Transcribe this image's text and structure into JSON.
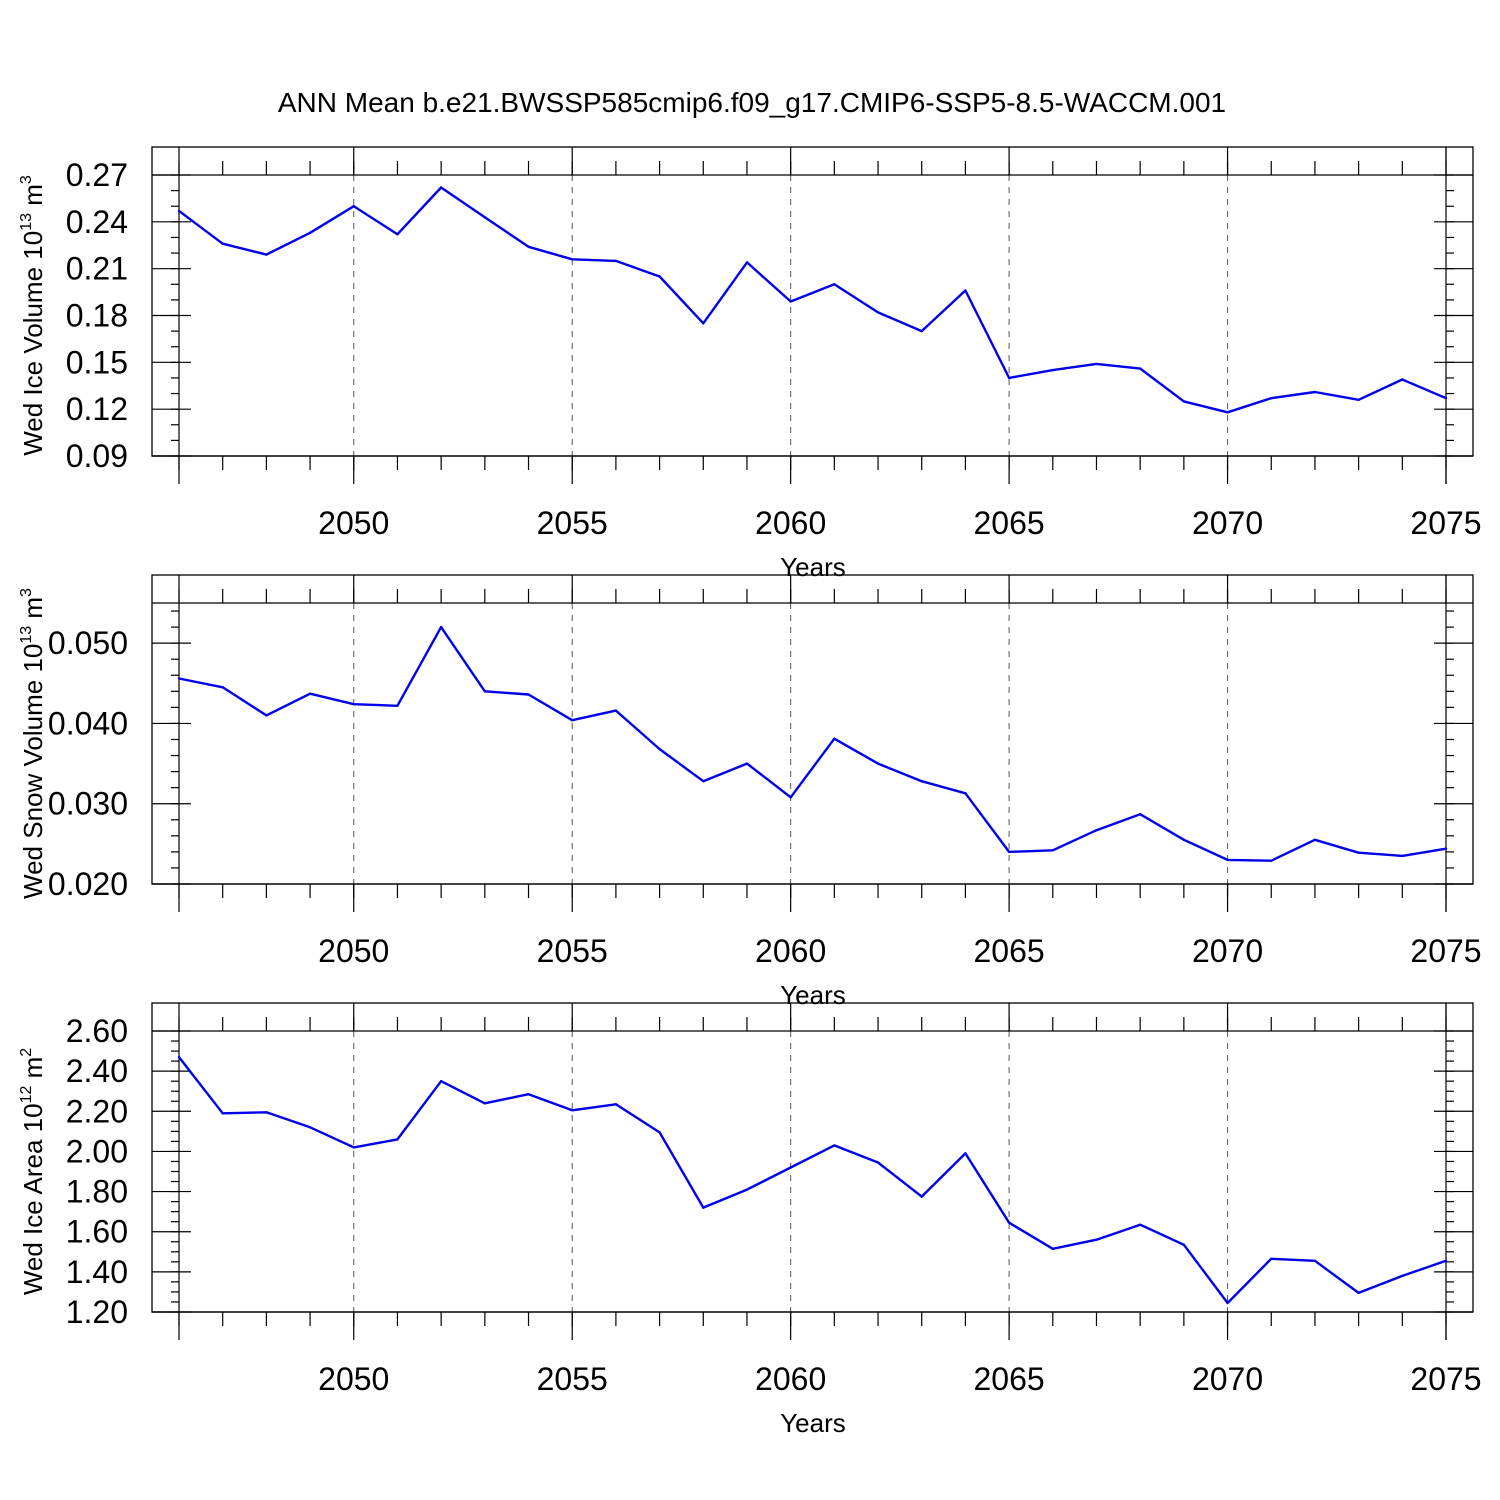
{
  "title": "ANN Mean b.e21.BWSSP585cmip6.f09_g17.CMIP6-SSP5-8.5-WACCM.001",
  "line_color": "#0000ee",
  "chart_data": [
    {
      "type": "line",
      "ylabel": {
        "prefix": "Wed Ice Volume 10",
        "exp": "13",
        "unit": " m",
        "unit_exp": "3"
      },
      "xlabel": "Years",
      "xlim": [
        2046,
        2075
      ],
      "ylim": [
        0.09,
        0.27
      ],
      "yticks": [
        0.09,
        0.12,
        0.15,
        0.18,
        0.21,
        0.24,
        0.27
      ],
      "ytick_labels": [
        "0.09",
        "0.12",
        "0.15",
        "0.18",
        "0.21",
        "0.24",
        "0.27"
      ],
      "yminor_step": 0.01,
      "xticks": [
        2050,
        2055,
        2060,
        2065,
        2070,
        2075
      ],
      "xtick_labels": [
        "2050",
        "2055",
        "2060",
        "2065",
        "2070",
        "2075"
      ],
      "grid_x": true,
      "x": [
        2046,
        2047,
        2048,
        2049,
        2050,
        2051,
        2052,
        2053,
        2054,
        2055,
        2056,
        2057,
        2058,
        2059,
        2060,
        2061,
        2062,
        2063,
        2064,
        2065,
        2066,
        2067,
        2068,
        2069,
        2070,
        2071,
        2072,
        2073,
        2074,
        2075
      ],
      "values": [
        0.247,
        0.226,
        0.219,
        0.233,
        0.25,
        0.232,
        0.262,
        0.243,
        0.224,
        0.216,
        0.215,
        0.205,
        0.175,
        0.214,
        0.189,
        0.2,
        0.182,
        0.17,
        0.196,
        0.14,
        0.145,
        0.149,
        0.146,
        0.125,
        0.118,
        0.127,
        0.131,
        0.126,
        0.139,
        0.127
      ]
    },
    {
      "type": "line",
      "ylabel": {
        "prefix": "Wed Snow Volume 10",
        "exp": "13",
        "unit": " m",
        "unit_exp": "3"
      },
      "xlabel": "Years",
      "xlim": [
        2046,
        2075
      ],
      "ylim": [
        0.02,
        0.055
      ],
      "yticks": [
        0.02,
        0.03,
        0.04,
        0.05
      ],
      "ytick_labels": [
        "0.020",
        "0.030",
        "0.040",
        "0.050"
      ],
      "yminor_step": 0.002,
      "xticks": [
        2050,
        2055,
        2060,
        2065,
        2070,
        2075
      ],
      "xtick_labels": [
        "2050",
        "2055",
        "2060",
        "2065",
        "2070",
        "2075"
      ],
      "grid_x": true,
      "x": [
        2046,
        2047,
        2048,
        2049,
        2050,
        2051,
        2052,
        2053,
        2054,
        2055,
        2056,
        2057,
        2058,
        2059,
        2060,
        2061,
        2062,
        2063,
        2064,
        2065,
        2066,
        2067,
        2068,
        2069,
        2070,
        2071,
        2072,
        2073,
        2074,
        2075
      ],
      "values": [
        0.0456,
        0.0445,
        0.041,
        0.0437,
        0.0424,
        0.0422,
        0.052,
        0.044,
        0.0436,
        0.0404,
        0.0416,
        0.0368,
        0.0328,
        0.035,
        0.0308,
        0.0381,
        0.035,
        0.0328,
        0.0313,
        0.024,
        0.0242,
        0.0267,
        0.0287,
        0.0255,
        0.023,
        0.0229,
        0.0255,
        0.0239,
        0.0235,
        0.0244
      ]
    },
    {
      "type": "line",
      "ylabel": {
        "prefix": "Wed Ice Area 10",
        "exp": "12",
        "unit": " m",
        "unit_exp": "2"
      },
      "xlabel": "Years",
      "xlim": [
        2046,
        2075
      ],
      "ylim": [
        1.2,
        2.6
      ],
      "yticks": [
        1.2,
        1.4,
        1.6,
        1.8,
        2.0,
        2.2,
        2.4,
        2.6
      ],
      "ytick_labels": [
        "1.20",
        "1.40",
        "1.60",
        "1.80",
        "2.00",
        "2.20",
        "2.40",
        "2.60"
      ],
      "yminor_step": 0.05,
      "xticks": [
        2050,
        2055,
        2060,
        2065,
        2070,
        2075
      ],
      "xtick_labels": [
        "2050",
        "2055",
        "2060",
        "2065",
        "2070",
        "2075"
      ],
      "grid_x": true,
      "x": [
        2046,
        2047,
        2048,
        2049,
        2050,
        2051,
        2052,
        2053,
        2054,
        2055,
        2056,
        2057,
        2058,
        2059,
        2060,
        2061,
        2062,
        2063,
        2064,
        2065,
        2066,
        2067,
        2068,
        2069,
        2070,
        2071,
        2072,
        2073,
        2074,
        2075
      ],
      "values": [
        2.47,
        2.19,
        2.195,
        2.12,
        2.02,
        2.06,
        2.35,
        2.24,
        2.285,
        2.205,
        2.235,
        2.095,
        1.72,
        1.81,
        1.92,
        2.03,
        1.945,
        1.775,
        1.99,
        1.645,
        1.515,
        1.56,
        1.635,
        1.535,
        1.245,
        1.465,
        1.455,
        1.295,
        1.38,
        1.455
      ]
    }
  ]
}
